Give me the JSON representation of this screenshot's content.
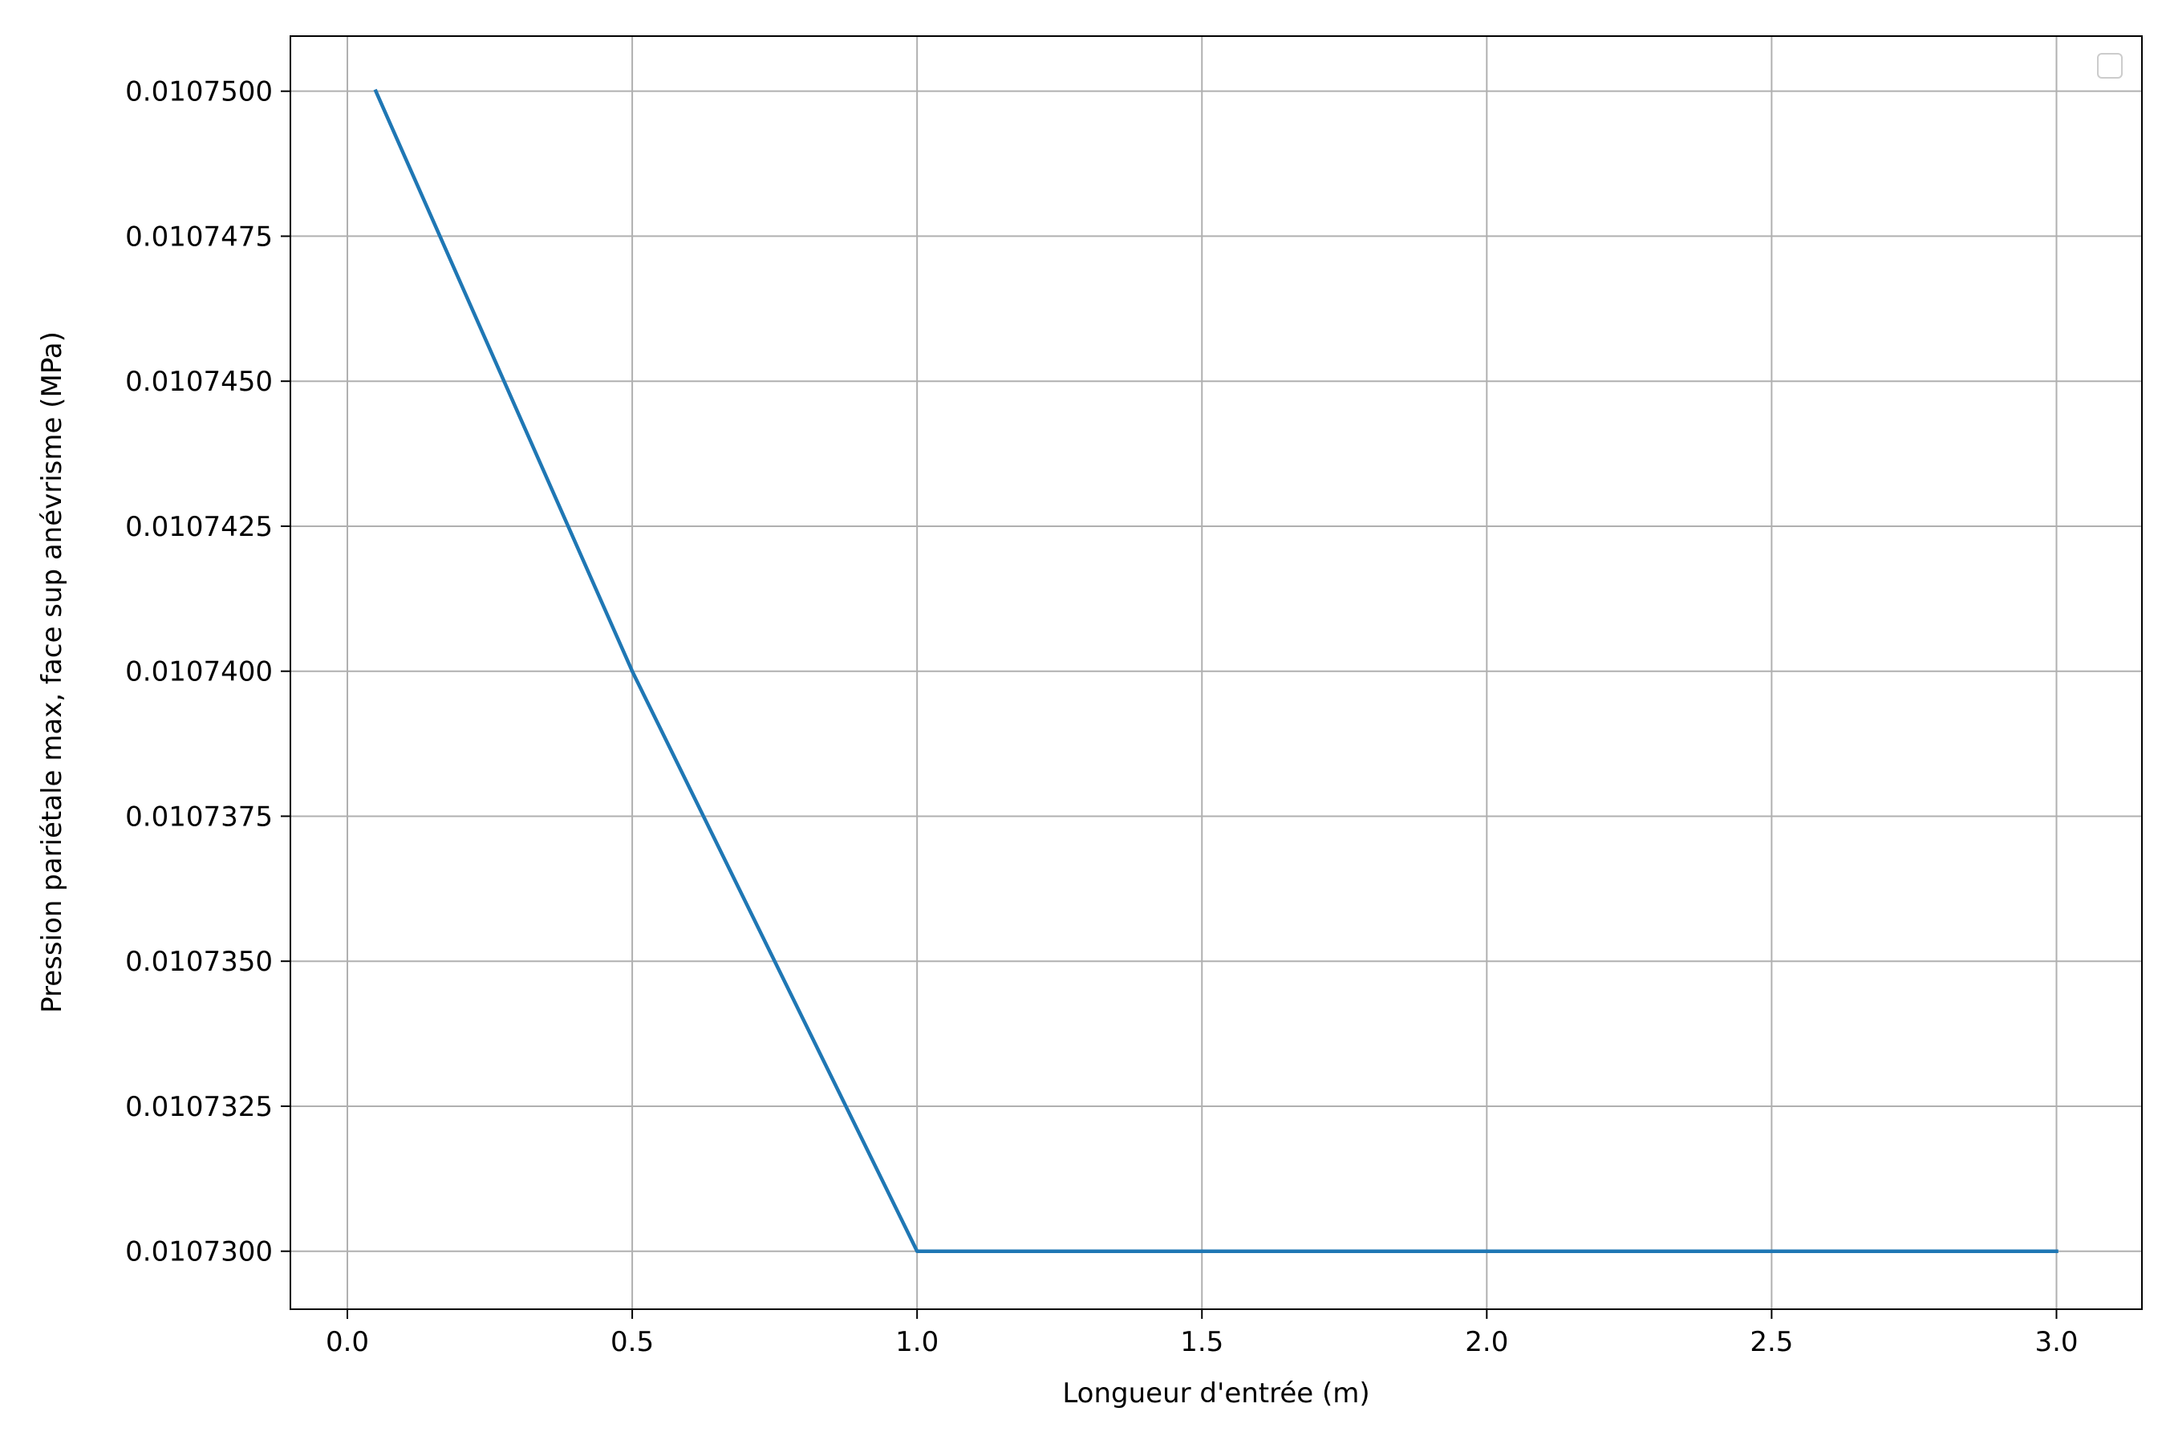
{
  "chart_data": {
    "type": "line",
    "title": "",
    "xlabel": "Longueur d'entrée (m)",
    "ylabel": "Pression pariétale max, face sup anévrisme (MPa)",
    "xlim": [
      -0.1,
      3.15
    ],
    "ylim": [
      0.010729,
      0.01075095
    ],
    "x_ticks": [
      0.0,
      0.5,
      1.0,
      1.5,
      2.0,
      2.5,
      3.0
    ],
    "x_tick_labels": [
      "0.0",
      "0.5",
      "1.0",
      "1.5",
      "2.0",
      "2.5",
      "3.0"
    ],
    "y_ticks": [
      0.01073,
      0.0107325,
      0.010735,
      0.0107375,
      0.01074,
      0.0107425,
      0.010745,
      0.0107475,
      0.01075
    ],
    "y_tick_labels": [
      "0.0107300",
      "0.0107325",
      "0.0107350",
      "0.0107375",
      "0.0107400",
      "0.0107425",
      "0.0107450",
      "0.0107475",
      "0.0107500"
    ],
    "grid": true,
    "legend": {
      "placement": "upper right",
      "entries": []
    },
    "series": [
      {
        "color": "#1f77b4",
        "x": [
          0.05,
          0.5,
          1.0,
          1.5,
          2.0,
          2.5,
          3.0
        ],
        "y": [
          0.01075,
          0.01074,
          0.01073,
          0.01073,
          0.01073,
          0.01073,
          0.01073
        ]
      }
    ],
    "colors": {
      "grid": "#b0b0b0",
      "axes": "#000000",
      "line": "#1f77b4"
    }
  }
}
